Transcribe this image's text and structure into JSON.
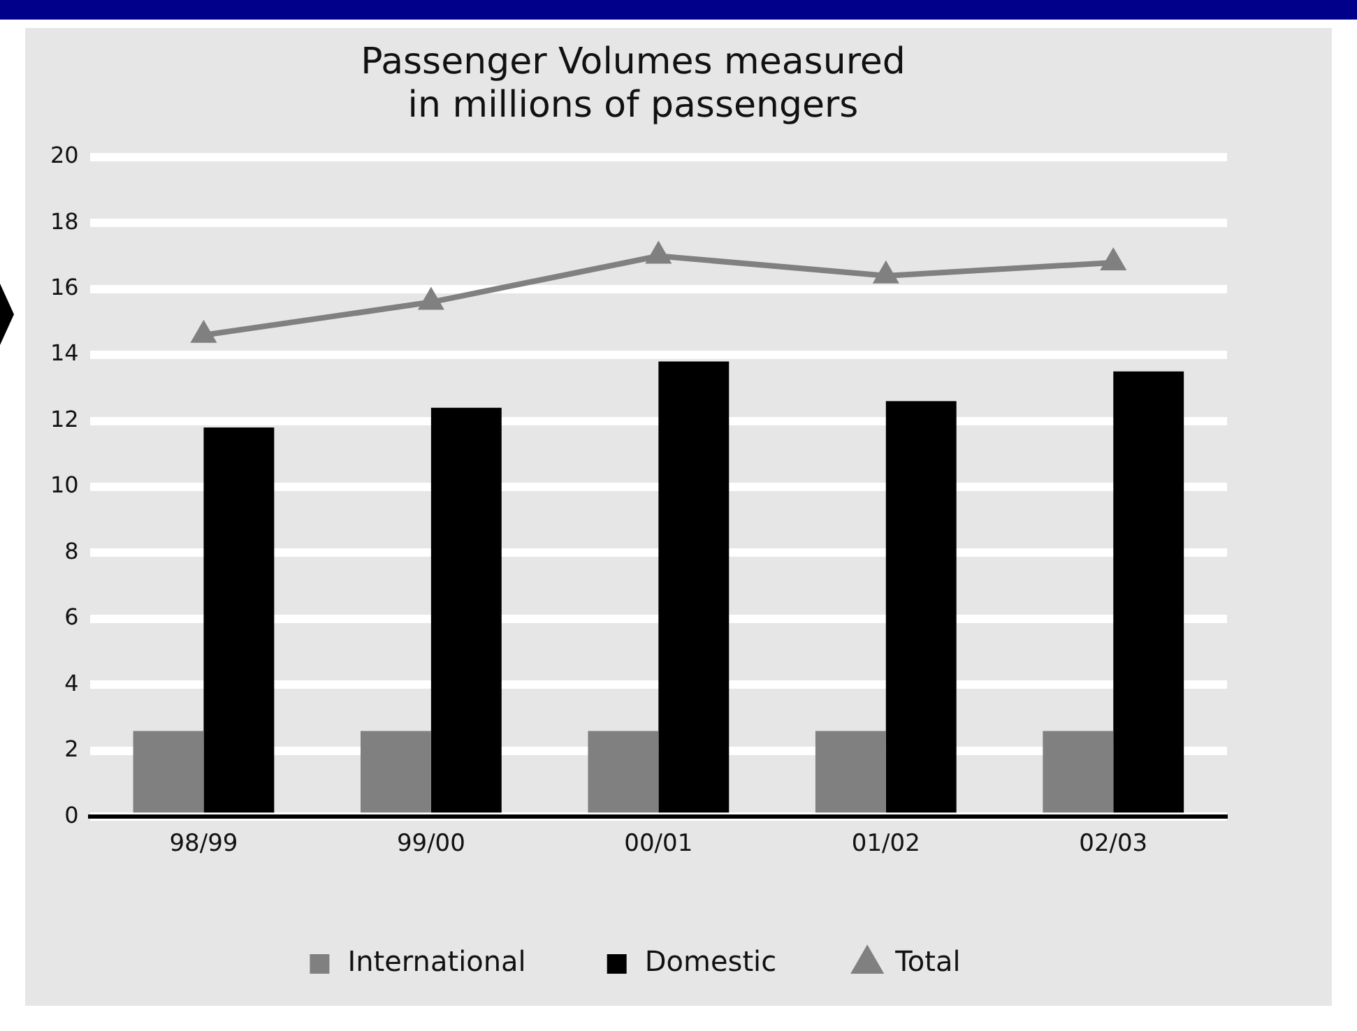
{
  "chart_data": {
    "type": "bar",
    "title": [
      "Passenger Volumes measured",
      "in millions of passengers"
    ],
    "categories": [
      "98/99",
      "99/00",
      "00/01",
      "01/02",
      "02/03"
    ],
    "series": [
      {
        "name": "International",
        "color": "#808080",
        "values": [
          2.6,
          2.6,
          2.6,
          2.6,
          2.6
        ]
      },
      {
        "name": "Domestic",
        "color": "#000000",
        "values": [
          11.8,
          12.4,
          13.8,
          12.6,
          13.5
        ]
      },
      {
        "name": "Total",
        "type": "line",
        "color": "#808080",
        "marker": "triangle",
        "values": [
          14.6,
          15.6,
          17.0,
          16.4,
          16.8
        ]
      }
    ],
    "ylim": [
      0,
      20
    ],
    "yticks": [
      0,
      2,
      4,
      6,
      8,
      10,
      12,
      14,
      16,
      18,
      20
    ],
    "grid": "y",
    "legend": "bottom"
  }
}
